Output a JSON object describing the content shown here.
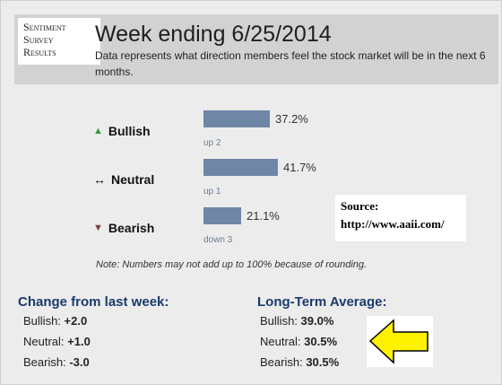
{
  "header": {
    "badge": [
      "Sentiment",
      "Survey",
      "Results"
    ],
    "title": "Week ending 6/25/2014",
    "description": "Data represents what direction members feel the stock market will be in the next 6 months."
  },
  "rows": [
    {
      "symbol": "▲",
      "symbol_color": "#3b9a3b",
      "label": "Bullish",
      "percent": "37.2%",
      "change": "up 2",
      "value": 37.2
    },
    {
      "symbol": "↔",
      "symbol_color": "#222222",
      "label": "Neutral",
      "percent": "41.7%",
      "change": "up 1",
      "value": 41.7
    },
    {
      "symbol": "▼",
      "symbol_color": "#7a3b3b",
      "label": "Bearish",
      "percent": "21.1%",
      "change": "down 3",
      "value": 21.1
    }
  ],
  "source": {
    "label": "Source:",
    "url": "http://www.aaii.com/"
  },
  "note": "Note: Numbers may not add up to 100% because of rounding.",
  "change_from_last_week": {
    "title": "Change from last week:",
    "items": [
      {
        "label": "Bullish:",
        "value": "+2.0"
      },
      {
        "label": "Neutral:",
        "value": "+1.0"
      },
      {
        "label": "Bearish:",
        "value": "-3.0"
      }
    ]
  },
  "long_term_average": {
    "title": "Long-Term Average:",
    "items": [
      {
        "label": "Bullish:",
        "value": "39.0%"
      },
      {
        "label": "Neutral:",
        "value": "30.5%"
      },
      {
        "label": "Bearish:",
        "value": "30.5%"
      }
    ]
  },
  "colors": {
    "bar": "#6f86a6",
    "accent_title": "#1a3a6b",
    "arrow": "#fff200"
  }
}
